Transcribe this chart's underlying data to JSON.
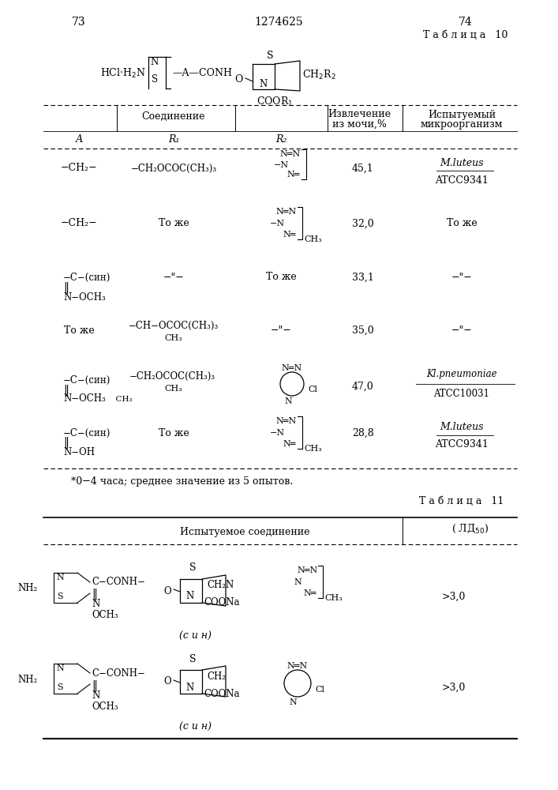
{
  "page_num_left": "73",
  "page_num_center": "1274625",
  "page_num_right": "74",
  "table10_title": "Т а б л и ц а   10",
  "table11_title": "Т а б л и ц а   11",
  "bg_color": "#ffffff",
  "text_color": "#000000"
}
